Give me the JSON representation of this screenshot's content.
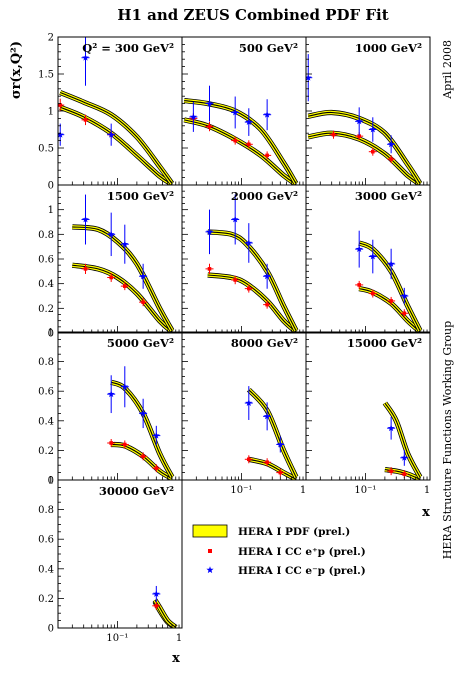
{
  "title": "H1 and ZEUS Combined PDF Fit",
  "side_date": "April 2008",
  "side_group": "HERA Structure Functions Working Group",
  "ylabel": "σr(x,Q²)",
  "xlabel": "x",
  "legend": {
    "band": "HERA I PDF (prel.)",
    "eplus": "HERA I CC e⁺p (prel.)",
    "eminus": "HERA I CC e⁻p (prel.)"
  },
  "colors": {
    "band": "#ffff00",
    "eplus": "#ff0000",
    "eminus": "#0000ff"
  },
  "chart_data": {
    "type": "scatter",
    "xscale": "log",
    "xlim": [
      0.012,
      1.0
    ],
    "x_tick_labels": [
      "10⁻¹",
      "1"
    ],
    "y_tick_labels": {
      "top_row": [
        "0",
        "0.5",
        "1",
        "1.5",
        "2"
      ],
      "other_rows": [
        "0",
        "0.2",
        "0.4",
        "0.6",
        "0.8",
        "1"
      ]
    },
    "panels": [
      {
        "label": "Q² = 300 GeV²",
        "q2": 300,
        "ylim": [
          0,
          2.0
        ],
        "eplus": [
          [
            0.013,
            1.08
          ],
          [
            0.032,
            0.88
          ],
          [
            0.08,
            0.68
          ]
        ],
        "eminus": [
          [
            0.013,
            0.68
          ],
          [
            0.032,
            1.72
          ],
          [
            0.08,
            0.68
          ]
        ],
        "fit_eplus": [
          [
            0.013,
            1.05
          ],
          [
            0.03,
            0.92
          ],
          [
            0.08,
            0.7
          ],
          [
            0.2,
            0.4
          ],
          [
            0.45,
            0.12
          ],
          [
            0.7,
            0.01
          ]
        ],
        "fit_eminus": [
          [
            0.013,
            1.25
          ],
          [
            0.03,
            1.12
          ],
          [
            0.08,
            0.95
          ],
          [
            0.2,
            0.65
          ],
          [
            0.45,
            0.25
          ],
          [
            0.7,
            0.02
          ]
        ]
      },
      {
        "label": "500 GeV²",
        "q2": 500,
        "ylim": [
          0,
          2.0
        ],
        "eplus": [
          [
            0.018,
            0.9
          ],
          [
            0.032,
            0.79
          ],
          [
            0.08,
            0.6
          ],
          [
            0.13,
            0.55
          ],
          [
            0.25,
            0.4
          ]
        ],
        "eminus": [
          [
            0.018,
            0.92
          ],
          [
            0.032,
            1.1
          ],
          [
            0.08,
            0.98
          ],
          [
            0.13,
            0.85
          ],
          [
            0.25,
            0.95
          ]
        ],
        "fit_eplus": [
          [
            0.013,
            0.88
          ],
          [
            0.03,
            0.8
          ],
          [
            0.08,
            0.62
          ],
          [
            0.2,
            0.4
          ],
          [
            0.45,
            0.13
          ],
          [
            0.7,
            0.01
          ]
        ],
        "fit_eminus": [
          [
            0.013,
            1.14
          ],
          [
            0.03,
            1.1
          ],
          [
            0.08,
            1.0
          ],
          [
            0.2,
            0.75
          ],
          [
            0.45,
            0.3
          ],
          [
            0.7,
            0.02
          ]
        ]
      },
      {
        "label": "1000 GeV²",
        "q2": 1000,
        "ylim": [
          0,
          2.0
        ],
        "eplus": [
          [
            0.032,
            0.68
          ],
          [
            0.08,
            0.66
          ],
          [
            0.13,
            0.45
          ],
          [
            0.25,
            0.35
          ]
        ],
        "eminus": [
          [
            0.013,
            1.45
          ],
          [
            0.08,
            0.86
          ],
          [
            0.13,
            0.75
          ],
          [
            0.25,
            0.55
          ]
        ],
        "fit_eplus": [
          [
            0.013,
            0.65
          ],
          [
            0.03,
            0.7
          ],
          [
            0.08,
            0.62
          ],
          [
            0.2,
            0.42
          ],
          [
            0.45,
            0.13
          ],
          [
            0.7,
            0.01
          ]
        ],
        "fit_eminus": [
          [
            0.013,
            0.93
          ],
          [
            0.03,
            0.98
          ],
          [
            0.08,
            0.9
          ],
          [
            0.2,
            0.7
          ],
          [
            0.45,
            0.28
          ],
          [
            0.7,
            0.02
          ]
        ]
      },
      {
        "label": "1500 GeV²",
        "q2": 1500,
        "ylim": [
          0,
          1.2
        ],
        "eplus": [
          [
            0.032,
            0.52
          ],
          [
            0.08,
            0.45
          ],
          [
            0.13,
            0.38
          ],
          [
            0.25,
            0.25
          ]
        ],
        "eminus": [
          [
            0.032,
            0.92
          ],
          [
            0.08,
            0.8
          ],
          [
            0.13,
            0.72
          ],
          [
            0.25,
            0.46
          ]
        ],
        "fit_eplus": [
          [
            0.02,
            0.55
          ],
          [
            0.05,
            0.52
          ],
          [
            0.1,
            0.45
          ],
          [
            0.2,
            0.32
          ],
          [
            0.45,
            0.1
          ],
          [
            0.7,
            0.01
          ]
        ],
        "fit_eminus": [
          [
            0.02,
            0.86
          ],
          [
            0.05,
            0.84
          ],
          [
            0.1,
            0.74
          ],
          [
            0.2,
            0.56
          ],
          [
            0.45,
            0.2
          ],
          [
            0.7,
            0.02
          ]
        ]
      },
      {
        "label": "2000 GeV²",
        "q2": 2000,
        "ylim": [
          0,
          1.2
        ],
        "eplus": [
          [
            0.032,
            0.52
          ],
          [
            0.08,
            0.43
          ],
          [
            0.13,
            0.36
          ],
          [
            0.25,
            0.23
          ]
        ],
        "eminus": [
          [
            0.032,
            0.82
          ],
          [
            0.08,
            0.92
          ],
          [
            0.13,
            0.73
          ],
          [
            0.25,
            0.46
          ]
        ],
        "fit_eplus": [
          [
            0.03,
            0.47
          ],
          [
            0.07,
            0.45
          ],
          [
            0.12,
            0.4
          ],
          [
            0.25,
            0.26
          ],
          [
            0.45,
            0.1
          ],
          [
            0.7,
            0.01
          ]
        ],
        "fit_eminus": [
          [
            0.03,
            0.82
          ],
          [
            0.07,
            0.8
          ],
          [
            0.12,
            0.72
          ],
          [
            0.25,
            0.5
          ],
          [
            0.45,
            0.22
          ],
          [
            0.7,
            0.02
          ]
        ]
      },
      {
        "label": "3000 GeV²",
        "q2": 3000,
        "ylim": [
          0,
          1.2
        ],
        "eplus": [
          [
            0.08,
            0.39
          ],
          [
            0.13,
            0.32
          ],
          [
            0.25,
            0.26
          ],
          [
            0.4,
            0.16
          ]
        ],
        "eminus": [
          [
            0.08,
            0.68
          ],
          [
            0.13,
            0.62
          ],
          [
            0.25,
            0.56
          ],
          [
            0.4,
            0.3
          ]
        ],
        "fit_eplus": [
          [
            0.08,
            0.36
          ],
          [
            0.13,
            0.33
          ],
          [
            0.25,
            0.24
          ],
          [
            0.45,
            0.1
          ],
          [
            0.7,
            0.01
          ]
        ],
        "fit_eminus": [
          [
            0.08,
            0.73
          ],
          [
            0.13,
            0.68
          ],
          [
            0.25,
            0.5
          ],
          [
            0.45,
            0.22
          ],
          [
            0.7,
            0.02
          ]
        ]
      },
      {
        "label": "5000 GeV²",
        "q2": 5000,
        "ylim": [
          0,
          1.0
        ],
        "eplus": [
          [
            0.08,
            0.25
          ],
          [
            0.13,
            0.24
          ],
          [
            0.25,
            0.16
          ],
          [
            0.4,
            0.08
          ]
        ],
        "eminus": [
          [
            0.08,
            0.58
          ],
          [
            0.13,
            0.63
          ],
          [
            0.25,
            0.45
          ],
          [
            0.4,
            0.3
          ]
        ],
        "fit_eplus": [
          [
            0.08,
            0.24
          ],
          [
            0.13,
            0.23
          ],
          [
            0.25,
            0.16
          ],
          [
            0.45,
            0.06
          ],
          [
            0.7,
            0.01
          ]
        ],
        "fit_eminus": [
          [
            0.08,
            0.66
          ],
          [
            0.13,
            0.62
          ],
          [
            0.25,
            0.45
          ],
          [
            0.45,
            0.18
          ],
          [
            0.7,
            0.02
          ]
        ]
      },
      {
        "label": "8000 GeV²",
        "q2": 8000,
        "ylim": [
          0,
          1.0
        ],
        "eplus": [
          [
            0.13,
            0.14
          ],
          [
            0.25,
            0.12
          ],
          [
            0.4,
            0.05
          ]
        ],
        "eminus": [
          [
            0.13,
            0.52
          ],
          [
            0.25,
            0.43
          ],
          [
            0.4,
            0.24
          ]
        ],
        "fit_eplus": [
          [
            0.13,
            0.14
          ],
          [
            0.25,
            0.11
          ],
          [
            0.45,
            0.05
          ],
          [
            0.7,
            0.005
          ]
        ],
        "fit_eminus": [
          [
            0.13,
            0.61
          ],
          [
            0.25,
            0.47
          ],
          [
            0.45,
            0.2
          ],
          [
            0.7,
            0.02
          ]
        ]
      },
      {
        "label": "15000 GeV²",
        "q2": 15000,
        "ylim": [
          0,
          1.0
        ],
        "eplus": [
          [
            0.25,
            0.06
          ],
          [
            0.4,
            0.04
          ]
        ],
        "eminus": [
          [
            0.25,
            0.35
          ],
          [
            0.4,
            0.15
          ]
        ],
        "fit_eplus": [
          [
            0.2,
            0.07
          ],
          [
            0.3,
            0.06
          ],
          [
            0.45,
            0.04
          ],
          [
            0.7,
            0.005
          ]
        ],
        "fit_eminus": [
          [
            0.2,
            0.52
          ],
          [
            0.3,
            0.4
          ],
          [
            0.45,
            0.18
          ],
          [
            0.7,
            0.02
          ]
        ]
      },
      {
        "label": "30000 GeV²",
        "q2": 30000,
        "ylim": [
          0,
          1.0
        ],
        "eplus": [
          [
            0.4,
            0.15
          ]
        ],
        "eminus": [
          [
            0.4,
            0.23
          ]
        ],
        "fit_eplus": [
          [
            0.38,
            0.18
          ],
          [
            0.45,
            0.12
          ],
          [
            0.6,
            0.04
          ],
          [
            0.8,
            0.005
          ]
        ],
        "fit_eminus": [
          [
            0.38,
            0.19
          ],
          [
            0.45,
            0.14
          ],
          [
            0.6,
            0.05
          ],
          [
            0.8,
            0.005
          ]
        ]
      }
    ]
  }
}
